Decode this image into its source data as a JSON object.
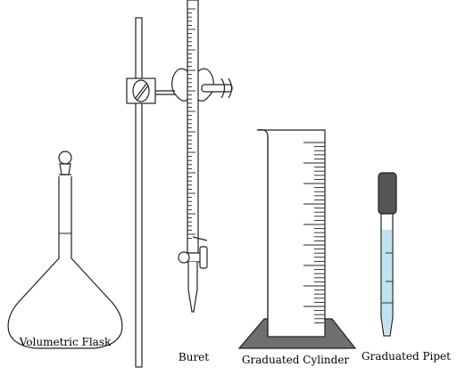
{
  "labels": {
    "flask": "Volumetric Flask",
    "buret": "Buret",
    "cylinder": "Graduated Cylinder",
    "pipet": "Graduated Pipet"
  },
  "colors": {
    "outline": "#222222",
    "glass_fill": "#ffffff",
    "base_fill": "#6f6f6f",
    "liquid": "#bfe3ef",
    "bulb": "#555555"
  }
}
